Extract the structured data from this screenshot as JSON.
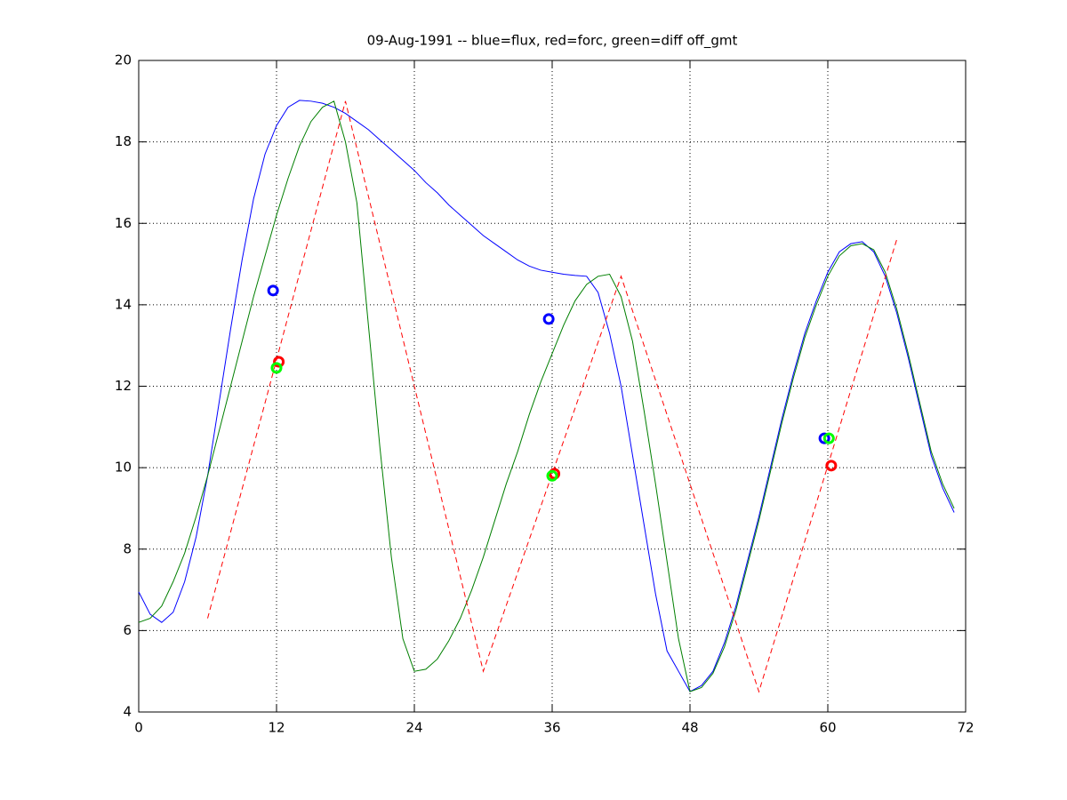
{
  "chart_data": {
    "type": "line",
    "title": "09-Aug-1991 -- blue=flux, red=forc, green=diff off_gmt",
    "xlim": [
      0,
      72
    ],
    "ylim": [
      4,
      20
    ],
    "xticks": [
      0,
      12,
      24,
      36,
      48,
      60,
      72
    ],
    "yticks": [
      4,
      6,
      8,
      10,
      12,
      14,
      16,
      18,
      20
    ],
    "grid": true,
    "series": [
      {
        "color": "#0000ff",
        "style": "solid",
        "x": [
          0,
          1,
          2,
          3,
          4,
          5,
          6,
          7,
          8,
          9,
          10,
          11,
          12,
          13,
          14,
          15,
          16,
          17,
          18,
          19,
          20,
          21,
          22,
          23,
          24,
          25,
          26,
          27,
          28,
          29,
          30,
          31,
          32,
          33,
          34,
          35,
          36,
          37,
          38,
          39,
          40,
          41,
          42,
          43,
          44,
          45,
          46,
          47,
          48,
          49,
          50,
          51,
          52,
          53,
          54,
          55,
          56,
          57,
          58,
          59,
          60,
          61,
          62,
          63,
          64,
          65,
          66,
          67,
          68,
          69,
          70,
          71
        ],
        "values": [
          6.95,
          6.4,
          6.2,
          6.45,
          7.2,
          8.3,
          9.8,
          11.6,
          13.4,
          15.1,
          16.6,
          17.7,
          18.4,
          18.85,
          19.02,
          19.0,
          18.95,
          18.85,
          18.7,
          18.5,
          18.3,
          18.05,
          17.8,
          17.55,
          17.3,
          17.0,
          16.75,
          16.45,
          16.2,
          15.95,
          15.7,
          15.5,
          15.3,
          15.1,
          14.95,
          14.85,
          14.8,
          14.75,
          14.72,
          14.7,
          14.3,
          13.3,
          12.0,
          10.3,
          8.6,
          6.9,
          5.5,
          5.0,
          4.5,
          4.65,
          5.0,
          5.7,
          6.6,
          7.7,
          8.8,
          10.0,
          11.2,
          12.3,
          13.3,
          14.1,
          14.8,
          15.3,
          15.5,
          15.55,
          15.3,
          14.7,
          13.8,
          12.7,
          11.5,
          10.3,
          9.5,
          8.9
        ]
      },
      {
        "color": "#007f00",
        "style": "solid",
        "x": [
          0,
          1,
          2,
          3,
          4,
          5,
          6,
          7,
          8,
          9,
          10,
          11,
          12,
          13,
          14,
          15,
          16,
          17,
          18,
          19,
          20,
          21,
          22,
          23,
          24,
          25,
          26,
          27,
          28,
          29,
          30,
          31,
          32,
          33,
          34,
          35,
          36,
          37,
          38,
          39,
          40,
          41,
          42,
          43,
          44,
          45,
          46,
          47,
          48,
          49,
          50,
          51,
          52,
          53,
          54,
          55,
          56,
          57,
          58,
          59,
          60,
          61,
          62,
          63,
          64,
          65,
          66,
          67,
          68,
          69,
          70,
          71
        ],
        "values": [
          6.2,
          6.3,
          6.6,
          7.2,
          7.9,
          8.8,
          9.8,
          10.9,
          12.0,
          13.1,
          14.2,
          15.2,
          16.2,
          17.1,
          17.9,
          18.5,
          18.85,
          19.0,
          18.0,
          16.5,
          13.5,
          10.5,
          7.8,
          5.8,
          5.0,
          5.05,
          5.3,
          5.75,
          6.3,
          7.0,
          7.8,
          8.7,
          9.6,
          10.4,
          11.3,
          12.1,
          12.8,
          13.5,
          14.1,
          14.5,
          14.7,
          14.75,
          14.2,
          13.1,
          11.4,
          9.6,
          7.7,
          5.8,
          4.5,
          4.6,
          4.95,
          5.6,
          6.5,
          7.6,
          8.7,
          9.9,
          11.1,
          12.2,
          13.2,
          14.0,
          14.7,
          15.2,
          15.45,
          15.5,
          15.35,
          14.8,
          13.9,
          12.8,
          11.6,
          10.4,
          9.6,
          9.0
        ]
      },
      {
        "color": "#ff0000",
        "style": "dashed",
        "x": [
          6,
          18,
          30,
          42,
          54,
          66
        ],
        "values": [
          6.3,
          19.0,
          5.0,
          14.7,
          4.5,
          15.6
        ]
      },
      {
        "color": "#0000ff",
        "marker": "o",
        "x": [
          11.7,
          35.7,
          59.7
        ],
        "values": [
          14.35,
          13.65,
          10.72
        ]
      },
      {
        "color": "#ff0000",
        "marker": "o",
        "x": [
          12.2,
          36.2,
          60.3
        ],
        "values": [
          12.6,
          9.85,
          10.05
        ]
      },
      {
        "color": "#00ff00",
        "marker": "o",
        "x": [
          12.0,
          36.0,
          60.1
        ],
        "values": [
          12.45,
          9.8,
          10.72
        ]
      }
    ]
  }
}
